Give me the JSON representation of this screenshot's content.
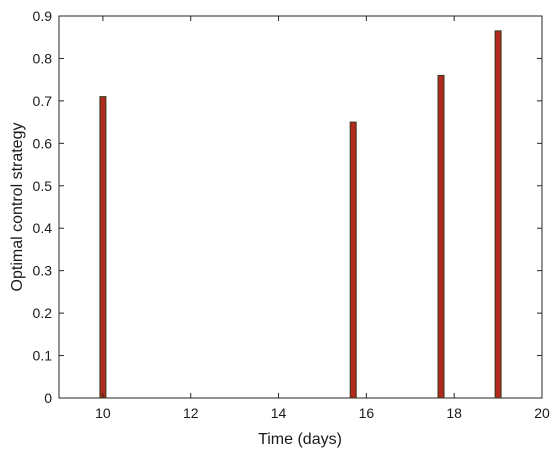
{
  "chart_data": {
    "type": "bar",
    "title": "",
    "xlabel": "Time (days)",
    "ylabel": "Optimal control strategy",
    "xlim": [
      9,
      20
    ],
    "ylim": [
      0,
      0.9
    ],
    "xticks": [
      10,
      12,
      14,
      16,
      18,
      20
    ],
    "yticks": [
      0,
      0.1,
      0.2,
      0.3,
      0.4,
      0.5,
      0.6,
      0.7,
      0.8,
      0.9
    ],
    "xtick_labels": [
      "10",
      "12",
      "14",
      "16",
      "18",
      "20"
    ],
    "ytick_labels": [
      "0",
      "0.1",
      "0.2",
      "0.3",
      "0.4",
      "0.5",
      "0.6",
      "0.7",
      "0.8",
      "0.9"
    ],
    "grid": false,
    "x": [
      10,
      15.7,
      17.7,
      19
    ],
    "values": [
      0.71,
      0.65,
      0.76,
      0.865
    ],
    "colors": {
      "bar_fill": "#b22a1e",
      "bar_edge": "#2f3a1a",
      "axis": "#262626",
      "background": "#ffffff"
    }
  }
}
